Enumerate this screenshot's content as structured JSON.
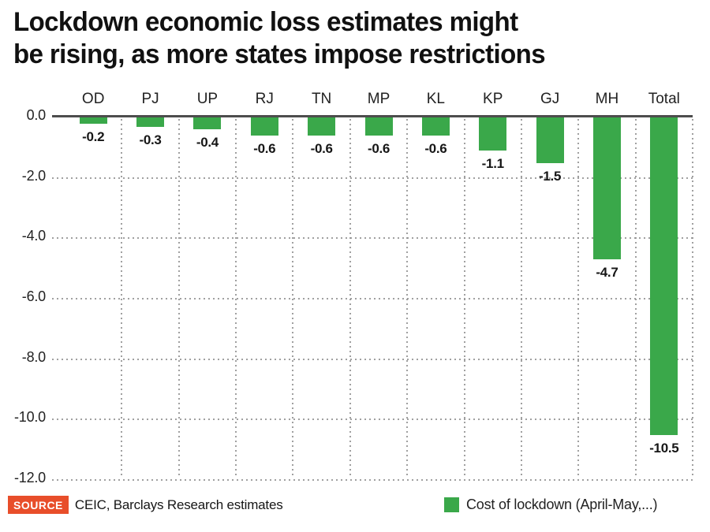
{
  "title": {
    "line1": "Lockdown economic loss estimates might",
    "line2": "be rising, as more states impose restrictions"
  },
  "footer": {
    "source_label": "SOURCE",
    "source_text": "CEIC, Barclays Research estimates"
  },
  "colors": {
    "bar": "#3aa84a",
    "axis": "#4d4d4d",
    "grid": "#8f8f8f",
    "source_badge": "#e84e2a",
    "title_text": "#111111"
  },
  "chart_data": {
    "type": "bar",
    "title": "Lockdown economic loss estimates might be rising, as more states impose restrictions",
    "categories": [
      "OD",
      "PJ",
      "UP",
      "RJ",
      "TN",
      "MP",
      "KL",
      "KP",
      "GJ",
      "MH",
      "Total"
    ],
    "values": [
      -0.2,
      -0.3,
      -0.4,
      -0.6,
      -0.6,
      -0.6,
      -0.6,
      -1.1,
      -1.5,
      -4.7,
      -10.5
    ],
    "value_labels": [
      "-0.2",
      "-0.3",
      "-0.4",
      "-0.6",
      "-0.6",
      "-0.6",
      "-0.6",
      "-1.1",
      "-1.5",
      "-4.7",
      "-10.5"
    ],
    "xlabel": "",
    "ylabel": "",
    "ylim": [
      -12.0,
      0.0
    ],
    "yticks": [
      "0.0",
      "-2.0",
      "-4.0",
      "-6.0",
      "-8.0",
      "-10.0",
      "-12.0"
    ],
    "grid": "dotted",
    "legend": [
      "Cost of lockdown (April-May,...)"
    ],
    "legend_position": "bottom-right"
  }
}
